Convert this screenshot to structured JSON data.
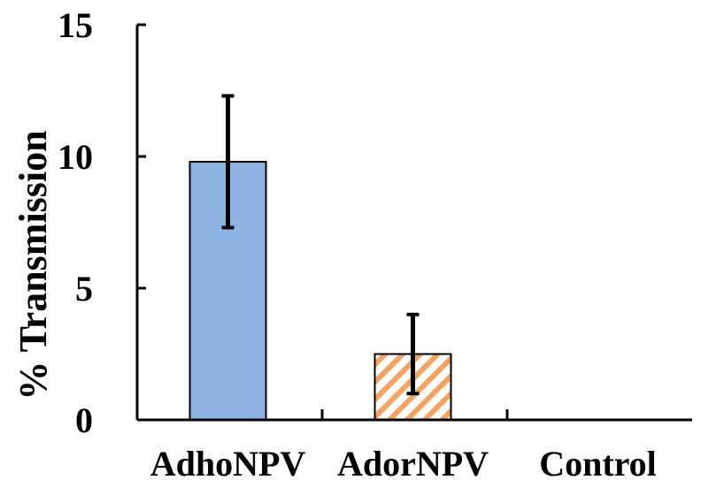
{
  "chart_data": {
    "type": "bar",
    "title": "",
    "xlabel": "",
    "ylabel": "% Transmission",
    "ylim": [
      0,
      15
    ],
    "yticks": [
      0,
      5,
      10,
      15
    ],
    "grid": false,
    "categories": [
      "AdhoNPV",
      "AdorNPV",
      "Control"
    ],
    "values": [
      9.8,
      2.5,
      0
    ],
    "errors": [
      2.5,
      1.5,
      0
    ],
    "bar_styles": [
      {
        "fill": "#8eb4e3",
        "pattern": "solid"
      },
      {
        "fill": "#fbd5b5",
        "pattern": "diagonal-hatch",
        "hatch_color": "#f4a460"
      },
      {
        "fill": "#ffffff",
        "pattern": "none"
      }
    ]
  }
}
